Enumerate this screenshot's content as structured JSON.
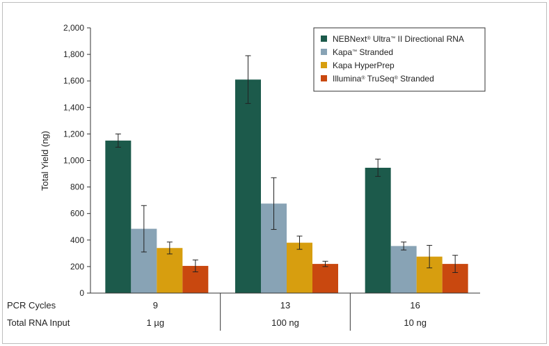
{
  "chart_data": {
    "type": "bar",
    "title": "",
    "ylabel": "Total Yield (ng)",
    "ylim": [
      0,
      2000
    ],
    "yticks": [
      0,
      200,
      400,
      600,
      800,
      1000,
      1200,
      1400,
      1600,
      1800,
      2000
    ],
    "ytick_labels": [
      "0",
      "200",
      "400",
      "600",
      "800",
      "1,000",
      "1,200",
      "1,400",
      "1,600",
      "1,800",
      "2,000"
    ],
    "row_headers": [
      "PCR Cycles",
      "Total RNA Input"
    ],
    "categories": [
      {
        "pcr_cycles": "9",
        "rna_input": "1 µg"
      },
      {
        "pcr_cycles": "13",
        "rna_input": "100 ng"
      },
      {
        "pcr_cycles": "16",
        "rna_input": "10 ng"
      }
    ],
    "legend_position": "top-right",
    "grid": false,
    "series": [
      {
        "name_parts": [
          "NEBNext",
          "®",
          " Ultra",
          "™",
          " II Directional RNA"
        ],
        "color": "#1c5a4b",
        "values": [
          1150,
          1610,
          945
        ],
        "errors": [
          50,
          180,
          65
        ]
      },
      {
        "name_parts": [
          "Kapa",
          "™",
          " Stranded"
        ],
        "color": "#88a3b5",
        "values": [
          485,
          675,
          355
        ],
        "errors": [
          175,
          195,
          30
        ]
      },
      {
        "name_parts": [
          "Kapa HyperPrep"
        ],
        "color": "#d79e0f",
        "values": [
          340,
          380,
          275
        ],
        "errors": [
          45,
          50,
          85
        ]
      },
      {
        "name_parts": [
          "Illumina",
          "®",
          " TruSeq",
          "®",
          " Stranded"
        ],
        "color": "#c9480f",
        "values": [
          205,
          220,
          220
        ],
        "errors": [
          45,
          20,
          65
        ]
      }
    ]
  }
}
